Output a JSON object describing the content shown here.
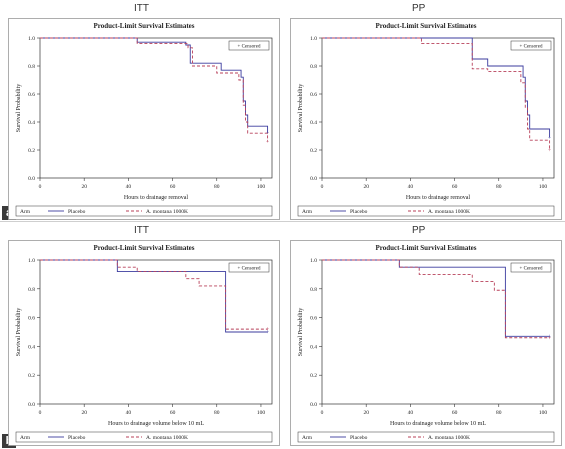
{
  "panels": {
    "a": "a",
    "b": "b"
  },
  "colors": {
    "placebo": "#3b3b9e",
    "amontana": "#b8405a",
    "axis": "#333333",
    "frame": "#999999"
  },
  "chart_data": [
    {
      "type": "line",
      "panel": "a",
      "header": "ITT",
      "title": "Product-Limit Survival Estimates",
      "xlabel": "Hours to drainage removal",
      "ylabel": "Survival Probability",
      "xlim": [
        0,
        105
      ],
      "ylim": [
        0,
        1
      ],
      "xticks": [
        0,
        20,
        40,
        60,
        80,
        100
      ],
      "yticks": [
        "0.0",
        "0.2",
        "0.4",
        "0.6",
        "0.8",
        "1.0"
      ],
      "censored_label": "+ Censored",
      "legend": {
        "title": "Arm",
        "entries": [
          "Placebo",
          "A. montana 1000K"
        ]
      },
      "series": [
        {
          "name": "Placebo",
          "style": "solid",
          "x": [
            0,
            44,
            66,
            68,
            82,
            91,
            92,
            93,
            94,
            103
          ],
          "y": [
            1.0,
            0.97,
            0.95,
            0.82,
            0.77,
            0.72,
            0.55,
            0.45,
            0.37,
            0.32
          ]
        },
        {
          "name": "A. montana 1000K",
          "style": "dashed",
          "x": [
            0,
            44,
            67,
            69,
            80,
            90,
            92,
            93,
            94,
            103
          ],
          "y": [
            1.0,
            0.96,
            0.93,
            0.8,
            0.75,
            0.7,
            0.52,
            0.4,
            0.32,
            0.26
          ]
        }
      ]
    },
    {
      "type": "line",
      "panel": "a",
      "header": "PP",
      "title": "Product-Limit Survival Estimates",
      "xlabel": "Hours to drainage removal",
      "ylabel": "Survival Probability",
      "xlim": [
        0,
        105
      ],
      "ylim": [
        0,
        1
      ],
      "xticks": [
        0,
        20,
        40,
        60,
        80,
        100
      ],
      "yticks": [
        "0.0",
        "0.2",
        "0.4",
        "0.6",
        "0.8",
        "1.0"
      ],
      "censored_label": "+ Censored",
      "legend": {
        "title": "Arm",
        "entries": [
          "Placebo",
          "A. montana 1000K"
        ]
      },
      "series": [
        {
          "name": "Placebo",
          "style": "solid",
          "x": [
            0,
            68,
            75,
            91,
            92,
            93,
            94,
            103
          ],
          "y": [
            1.0,
            0.85,
            0.8,
            0.72,
            0.55,
            0.45,
            0.35,
            0.29
          ]
        },
        {
          "name": "A. montana 1000K",
          "style": "dashed",
          "x": [
            0,
            45,
            68,
            75,
            90,
            92,
            93,
            94,
            103
          ],
          "y": [
            1.0,
            0.96,
            0.78,
            0.76,
            0.68,
            0.5,
            0.35,
            0.27,
            0.2
          ]
        }
      ]
    },
    {
      "type": "line",
      "panel": "b",
      "header": "ITT",
      "title": "Product-Limit Survival Estimates",
      "xlabel": "Hours to drainage volume below 10 mL",
      "ylabel": "Survival Probability",
      "xlim": [
        0,
        105
      ],
      "ylim": [
        0,
        1
      ],
      "xticks": [
        0,
        20,
        40,
        60,
        80,
        100
      ],
      "yticks": [
        "0.0",
        "0.2",
        "0.4",
        "0.6",
        "0.8",
        "1.0"
      ],
      "censored_label": "+ Censored",
      "legend": {
        "title": "Arm",
        "entries": [
          "Placebo",
          "A. montana 1000K"
        ]
      },
      "series": [
        {
          "name": "Placebo",
          "style": "solid",
          "x": [
            0,
            35,
            84,
            103
          ],
          "y": [
            1.0,
            0.92,
            0.5,
            0.5
          ]
        },
        {
          "name": "A. montana 1000K",
          "style": "dashed",
          "x": [
            0,
            35,
            44,
            66,
            72,
            84,
            103
          ],
          "y": [
            1.0,
            0.95,
            0.92,
            0.87,
            0.82,
            0.52,
            0.52
          ]
        }
      ]
    },
    {
      "type": "line",
      "panel": "b",
      "header": "PP",
      "title": "Product-Limit Survival Estimates",
      "xlabel": "Hours to drainage volume below 10 mL",
      "ylabel": "Survival Probability",
      "xlim": [
        0,
        105
      ],
      "ylim": [
        0,
        1
      ],
      "xticks": [
        0,
        20,
        40,
        60,
        80,
        100
      ],
      "yticks": [
        "0.0",
        "0.2",
        "0.4",
        "0.6",
        "0.8",
        "1.0"
      ],
      "censored_label": "+ Censored",
      "legend": {
        "title": "Arm",
        "entries": [
          "Placebo",
          "A. montana 1000K"
        ]
      },
      "series": [
        {
          "name": "Placebo",
          "style": "solid",
          "x": [
            0,
            35,
            83,
            103
          ],
          "y": [
            1.0,
            0.95,
            0.47,
            0.47
          ]
        },
        {
          "name": "A. montana 1000K",
          "style": "dashed",
          "x": [
            0,
            35,
            44,
            68,
            78,
            83,
            103
          ],
          "y": [
            1.0,
            0.95,
            0.9,
            0.85,
            0.79,
            0.46,
            0.46
          ]
        }
      ]
    }
  ]
}
